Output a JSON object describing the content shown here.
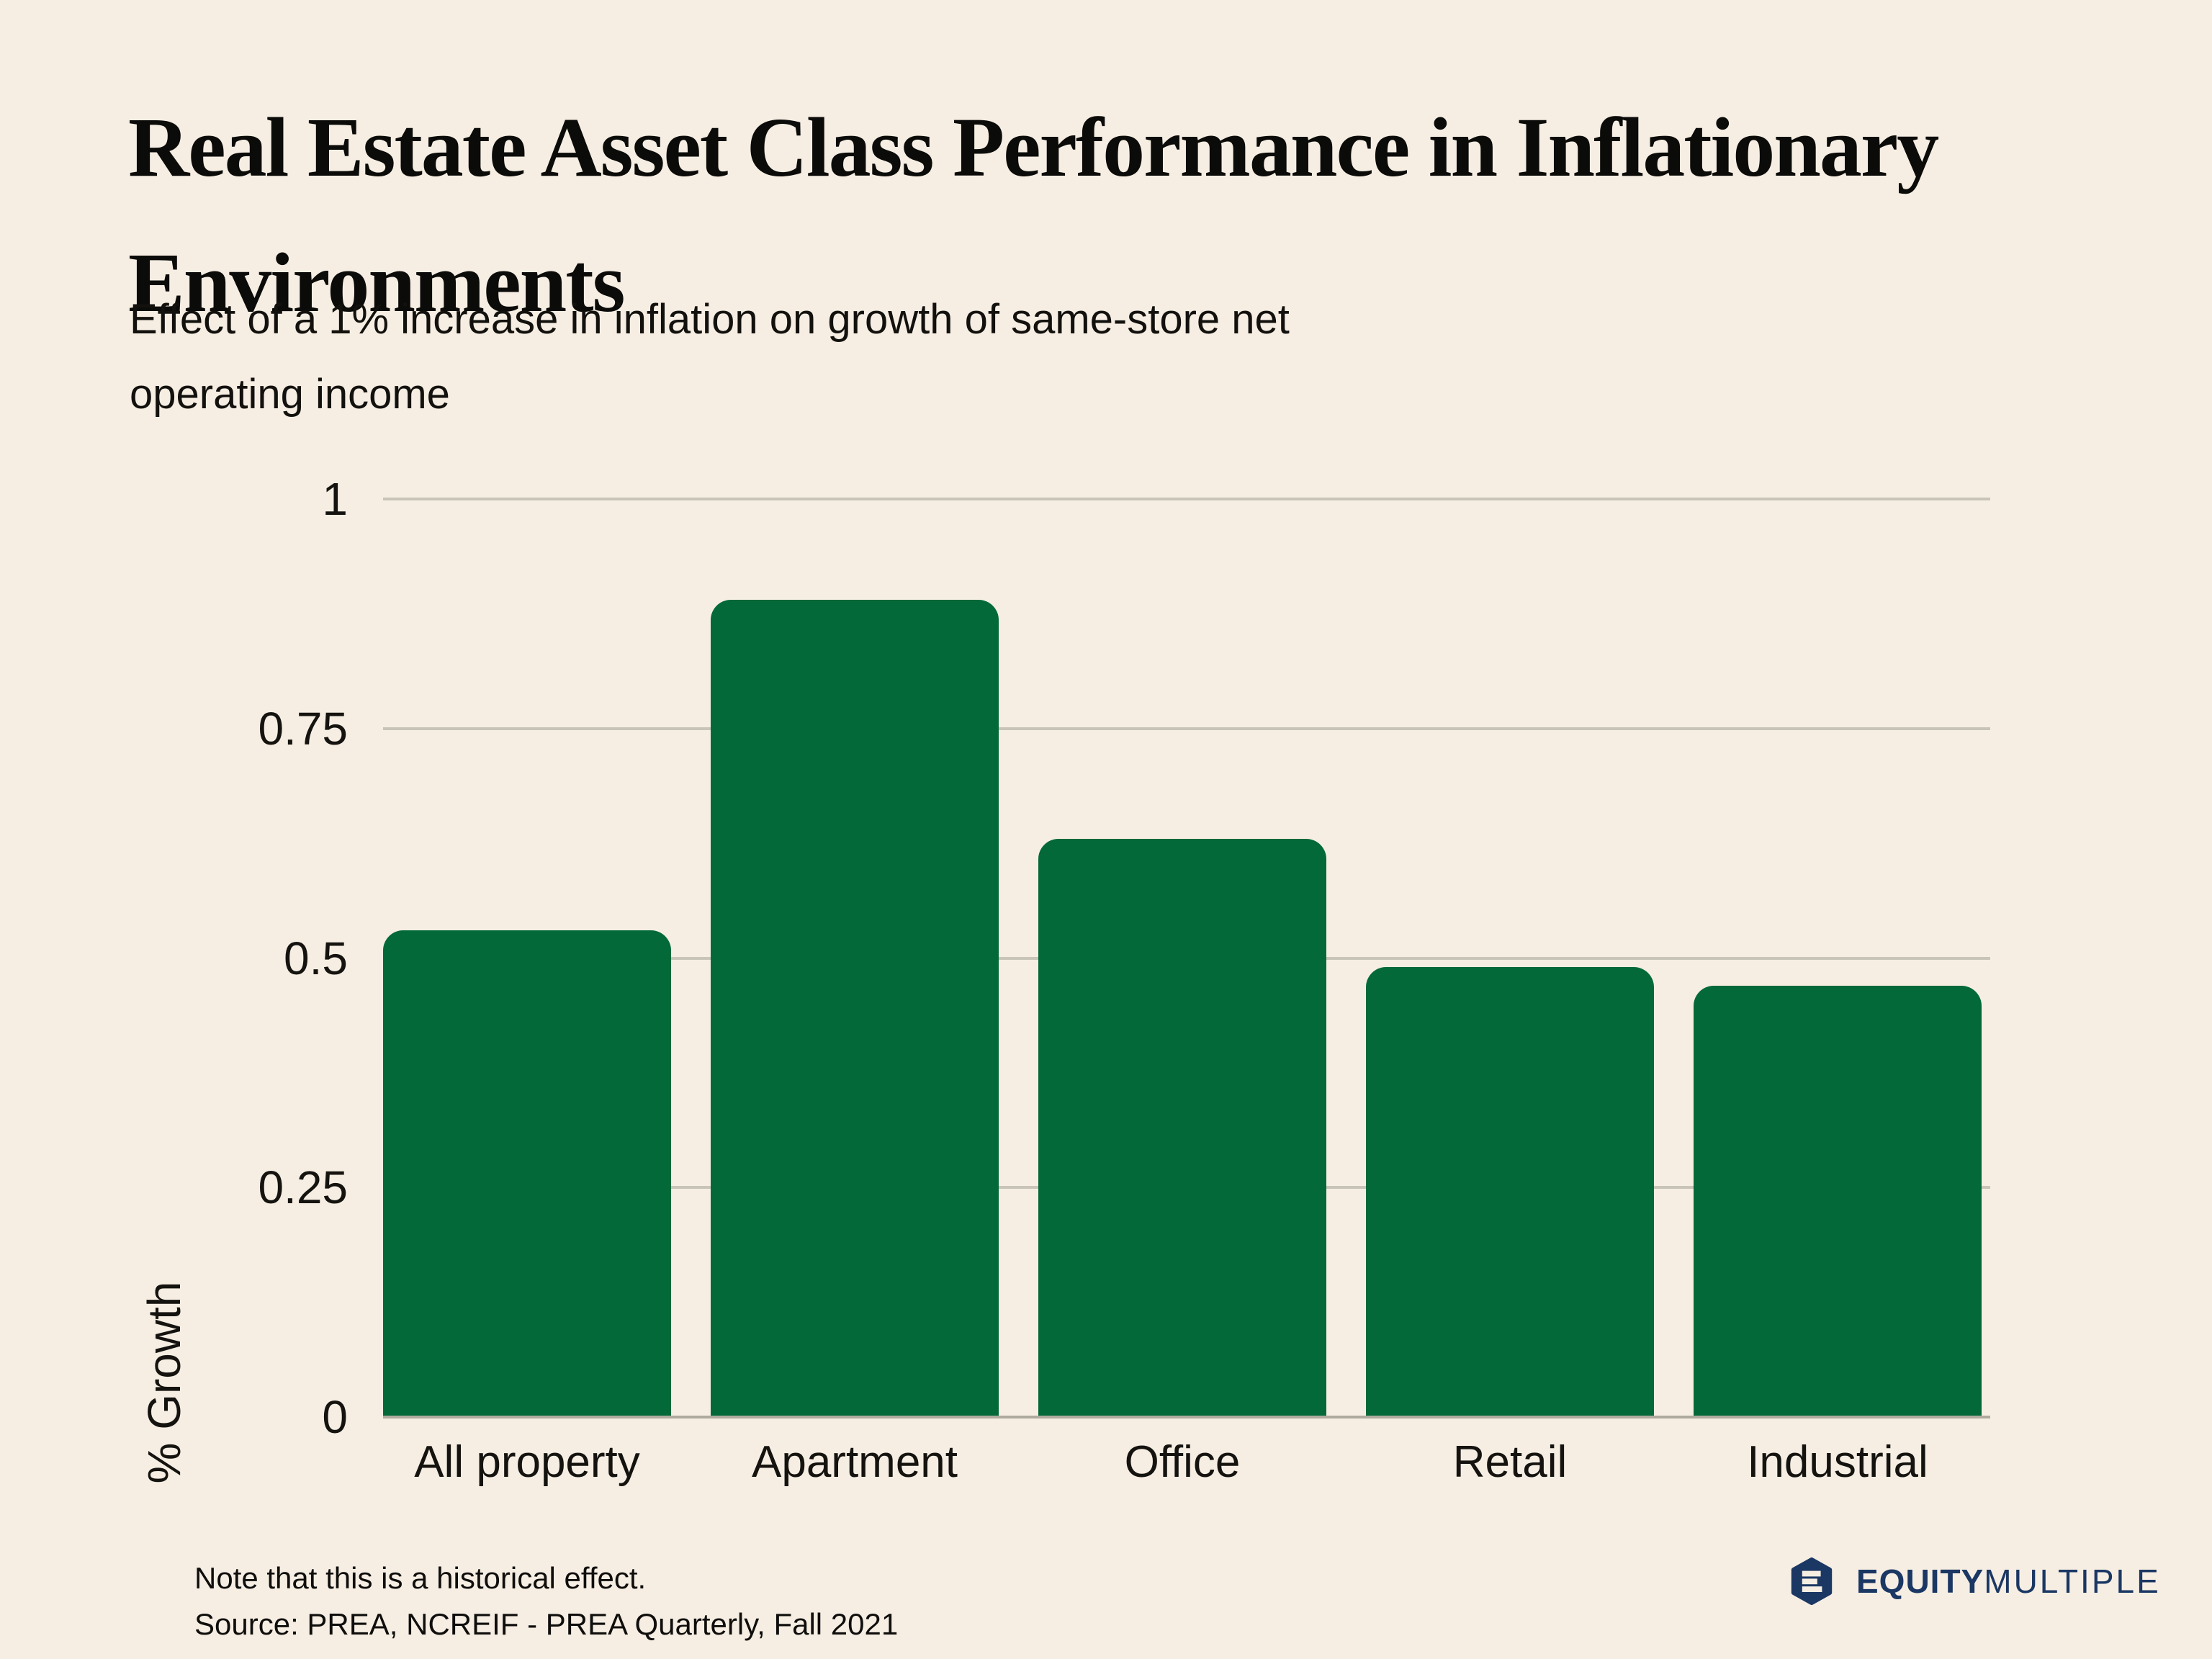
{
  "page": {
    "title_lines": [
      "Real Estate Asset Class Performance in Inflationary",
      "Environments"
    ],
    "subtitle_lines": [
      "Effect of a 1% increase in inflation on growth of same-store net",
      "operating income"
    ]
  },
  "chart_data": {
    "type": "bar",
    "title": "Real Estate Asset Class Performance in Inflationary Environments",
    "subtitle": "Effect of a 1% increase in inflation on growth of same-store net operating income",
    "categories": [
      "All property",
      "Apartment",
      "Office",
      "Retail",
      "Industrial"
    ],
    "values": [
      0.53,
      0.89,
      0.63,
      0.49,
      0.47
    ],
    "xlabel": "",
    "ylabel": "% Growth",
    "ylim": [
      0,
      1
    ],
    "yticks": [
      0,
      0.25,
      0.5,
      0.75,
      1
    ],
    "ytick_labels": [
      "0",
      "0.25",
      "0.5",
      "0.75",
      "1"
    ],
    "grid": true,
    "legend": false,
    "bar_color": "#036938"
  },
  "footer": {
    "note": "Note that this is a historical effect.",
    "source": "Source: PREA, NCREIF - PREA Quarterly, Fall 2021"
  },
  "logo": {
    "bold_text": "EQUITY",
    "light_text": "MULTIPLE",
    "color": "#1B3763"
  },
  "colors": {
    "background": "#F6EEE3",
    "bar": "#036938",
    "gridline": "#C9C4B8",
    "baseline": "#AFAA9E",
    "text": "#121210",
    "logo_navy": "#1B3763"
  }
}
